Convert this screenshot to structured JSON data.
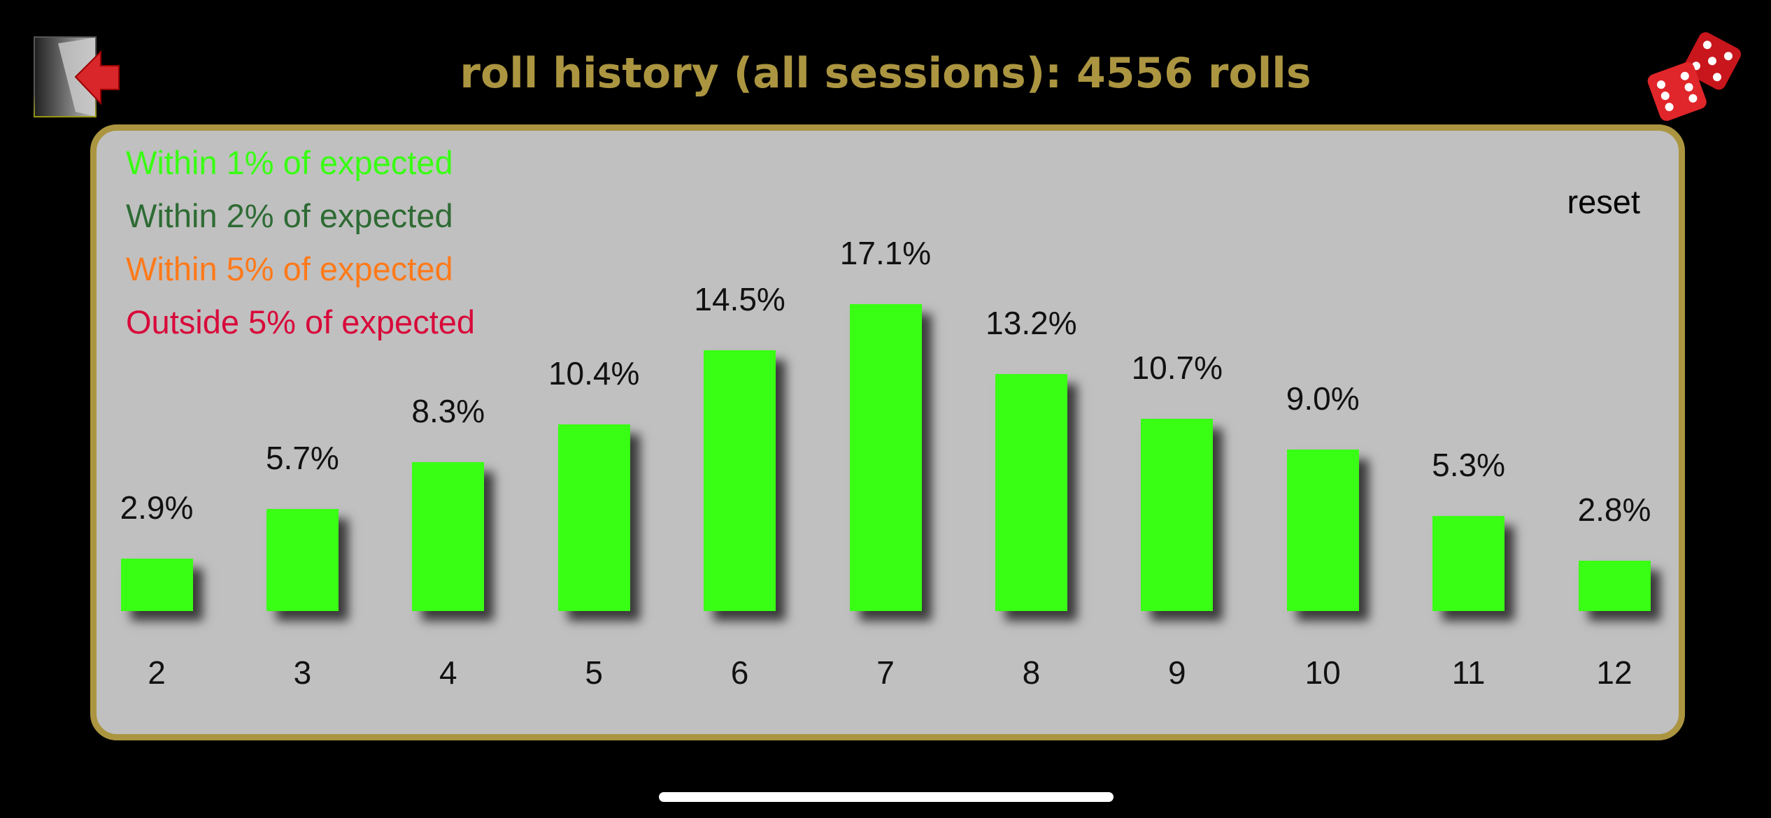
{
  "header": {
    "title": "roll history (all sessions): 4556 rolls",
    "back_icon": "exit-door-arrow-icon",
    "dice_icon": "red-dice-icon"
  },
  "legend": [
    {
      "label": "Within 1% of expected",
      "color": "#39ff14"
    },
    {
      "label": "Within 2% of expected",
      "color": "#2e6b34"
    },
    {
      "label": "Within 5% of expected",
      "color": "#ff7a1a"
    },
    {
      "label": "Outside 5% of expected",
      "color": "#d8093a"
    }
  ],
  "reset_label": "reset",
  "colors": {
    "accent": "#ab9540",
    "panel": "#c0c0c0",
    "bar": "#39ff14"
  },
  "chart_data": {
    "type": "bar",
    "categories": [
      "2",
      "3",
      "4",
      "5",
      "6",
      "7",
      "8",
      "9",
      "10",
      "11",
      "12"
    ],
    "values": [
      2.9,
      5.7,
      8.3,
      10.4,
      14.5,
      17.1,
      13.2,
      10.7,
      9.0,
      5.3,
      2.8
    ],
    "labels": [
      "2.9%",
      "5.7%",
      "8.3%",
      "10.4%",
      "14.5%",
      "17.1%",
      "13.2%",
      "10.7%",
      "9.0%",
      "5.3%",
      "2.8%"
    ],
    "unit": "%"
  }
}
